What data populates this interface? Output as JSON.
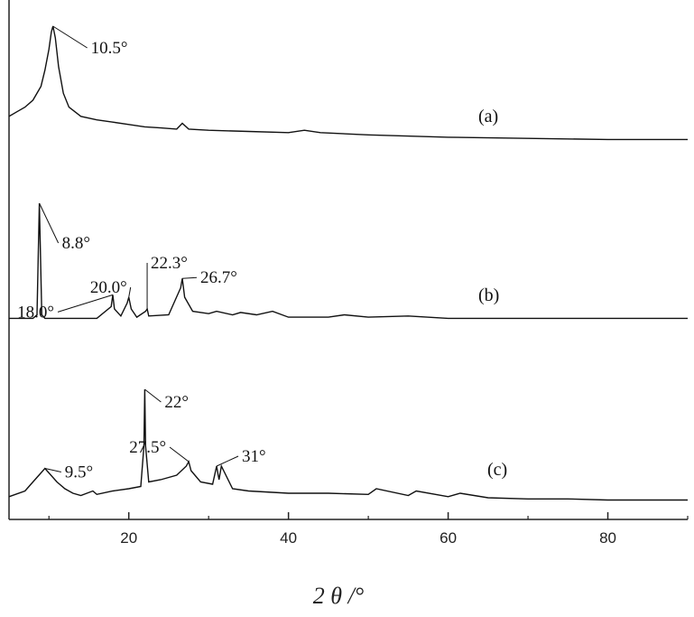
{
  "chart_data": {
    "type": "line",
    "title": "",
    "xlabel": "2 θ /°",
    "ylabel": "",
    "xlim": [
      5,
      90
    ],
    "xticks": [
      20,
      40,
      60,
      80
    ],
    "grid": false,
    "series": [
      {
        "label": "(a)",
        "x": [
          5,
          6,
          7,
          8,
          9,
          9.5,
          10,
          10.3,
          10.5,
          10.8,
          11.2,
          11.8,
          12.5,
          14,
          16,
          18,
          20,
          22,
          24,
          26,
          26.7,
          27.5,
          30,
          35,
          40,
          42,
          44,
          50,
          60,
          70,
          80,
          90
        ],
        "y": [
          0.22,
          0.26,
          0.3,
          0.36,
          0.48,
          0.62,
          0.8,
          0.95,
          1.0,
          0.9,
          0.65,
          0.42,
          0.3,
          0.22,
          0.19,
          0.17,
          0.15,
          0.13,
          0.12,
          0.11,
          0.16,
          0.11,
          0.1,
          0.09,
          0.08,
          0.1,
          0.08,
          0.06,
          0.04,
          0.03,
          0.02,
          0.02
        ],
        "annotations": [
          {
            "text": "10.5°",
            "x": 10.5
          }
        ]
      },
      {
        "label": "(b)",
        "x": [
          5,
          8,
          8.5,
          8.8,
          9.1,
          9.5,
          12,
          16,
          17.8,
          18.0,
          18.2,
          19,
          19.8,
          20.0,
          20.3,
          21,
          22.1,
          22.3,
          22.5,
          25,
          26.5,
          26.7,
          27.0,
          28,
          30,
          31,
          33,
          34,
          36,
          38,
          40,
          45,
          47,
          50,
          55,
          60,
          70,
          80,
          90
        ],
        "y": [
          0.02,
          0.02,
          0.05,
          1.0,
          0.05,
          0.02,
          0.02,
          0.02,
          0.12,
          0.22,
          0.1,
          0.04,
          0.15,
          0.2,
          0.1,
          0.03,
          0.08,
          0.1,
          0.04,
          0.05,
          0.28,
          0.36,
          0.2,
          0.08,
          0.06,
          0.08,
          0.05,
          0.07,
          0.05,
          0.08,
          0.03,
          0.03,
          0.05,
          0.03,
          0.04,
          0.02,
          0.02,
          0.02,
          0.02
        ],
        "annotations": [
          {
            "text": "8.8°",
            "x": 8.8
          },
          {
            "text": "18.0°",
            "x": 18.0
          },
          {
            "text": "20.0°",
            "x": 20.0
          },
          {
            "text": "22.3°",
            "x": 22.3
          },
          {
            "text": "26.7°",
            "x": 26.7
          }
        ]
      },
      {
        "label": "(c)",
        "x": [
          5,
          7,
          8,
          9,
          9.5,
          10,
          11,
          12,
          13,
          14,
          15.5,
          16,
          18,
          20,
          21.5,
          21.9,
          22.0,
          22.1,
          22.5,
          24,
          26,
          27.2,
          27.5,
          27.8,
          29,
          30.5,
          31.0,
          31.3,
          31.6,
          33,
          35,
          40,
          45,
          50,
          51,
          55,
          56,
          60,
          61.5,
          65,
          70,
          75,
          80,
          85,
          90
        ],
        "y": [
          0.05,
          0.1,
          0.18,
          0.26,
          0.3,
          0.26,
          0.18,
          0.12,
          0.08,
          0.06,
          0.1,
          0.07,
          0.1,
          0.12,
          0.14,
          0.5,
          1.0,
          0.5,
          0.18,
          0.2,
          0.24,
          0.32,
          0.36,
          0.28,
          0.18,
          0.16,
          0.32,
          0.2,
          0.32,
          0.12,
          0.1,
          0.08,
          0.08,
          0.07,
          0.12,
          0.06,
          0.1,
          0.05,
          0.08,
          0.04,
          0.03,
          0.03,
          0.02,
          0.02,
          0.02
        ],
        "annotations": [
          {
            "text": "9.5°",
            "x": 9.5
          },
          {
            "text": "22°",
            "x": 22
          },
          {
            "text": "27.5°",
            "x": 27.5
          },
          {
            "text": "31°",
            "x": 31
          }
        ]
      }
    ]
  }
}
